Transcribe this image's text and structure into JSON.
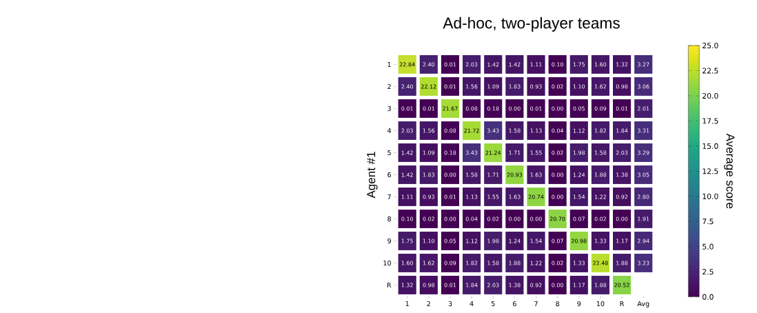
{
  "chart_data": {
    "type": "heatmap",
    "title": "Ad-hoc, two-player teams",
    "ylabel": "Agent #1",
    "clabel": "Average score",
    "categories": [
      "1",
      "2",
      "3",
      "4",
      "5",
      "6",
      "7",
      "8",
      "9",
      "10",
      "R",
      "Avg"
    ],
    "y_categories": [
      "1",
      "2",
      "3",
      "4",
      "5",
      "6",
      "7",
      "8",
      "9",
      "10",
      "R"
    ],
    "cells": [
      [
        22.84,
        2.4,
        0.01,
        2.03,
        1.42,
        1.42,
        1.11,
        0.1,
        1.75,
        1.6,
        1.32,
        3.27
      ],
      [
        2.4,
        22.12,
        0.01,
        1.56,
        1.09,
        1.83,
        0.93,
        0.02,
        1.1,
        1.62,
        0.98,
        3.06
      ],
      [
        0.01,
        0.01,
        21.67,
        0.08,
        0.18,
        0.0,
        0.01,
        0.0,
        0.05,
        0.09,
        0.01,
        2.01
      ],
      [
        2.03,
        1.56,
        0.08,
        21.72,
        3.43,
        1.58,
        1.13,
        0.04,
        1.12,
        1.82,
        1.84,
        3.31
      ],
      [
        1.42,
        1.09,
        0.18,
        3.43,
        21.24,
        1.71,
        1.55,
        0.02,
        1.98,
        1.58,
        2.03,
        3.29
      ],
      [
        1.42,
        1.83,
        0.0,
        1.58,
        1.71,
        20.93,
        1.63,
        0.0,
        1.24,
        1.88,
        1.38,
        3.05
      ],
      [
        1.11,
        0.93,
        0.01,
        1.13,
        1.55,
        1.63,
        20.74,
        0.0,
        1.54,
        1.22,
        0.92,
        2.8
      ],
      [
        0.1,
        0.02,
        0.0,
        0.04,
        0.02,
        0.0,
        0.0,
        20.7,
        0.07,
        0.02,
        0.0,
        1.91
      ],
      [
        1.75,
        1.1,
        0.05,
        1.12,
        1.98,
        1.24,
        1.54,
        0.07,
        20.98,
        1.33,
        1.17,
        2.94
      ],
      [
        1.6,
        1.62,
        0.09,
        1.82,
        1.58,
        1.88,
        1.22,
        0.02,
        1.33,
        22.48,
        1.88,
        3.23
      ],
      [
        1.32,
        0.98,
        0.01,
        1.84,
        2.03,
        1.38,
        0.92,
        0.0,
        1.17,
        1.88,
        20.52,
        null
      ]
    ],
    "cell_labels": [
      [
        "22.84",
        "2.40",
        "0.01",
        "2.03",
        "1.42",
        "1.42",
        "1.11",
        "0.10",
        "1.75",
        "1.60",
        "1.32",
        "3.27"
      ],
      [
        "2.40",
        "22.12",
        "0.01",
        "1.56",
        "1.09",
        "1.83",
        "0.93",
        "0.02",
        "1.10",
        "1.62",
        "0.98",
        "3.06"
      ],
      [
        "0.01",
        "0.01",
        "21.67",
        "0.08",
        "0.18",
        "0.00",
        "0.01",
        "0.00",
        "0.05",
        "0.09",
        "0.01",
        "2.01"
      ],
      [
        "2.03",
        "1.56",
        "0.08",
        "21.72",
        "3.43",
        "1.58",
        "1.13",
        "0.04",
        "1.12",
        "1.82",
        "1.84",
        "3.31"
      ],
      [
        "1.42",
        "1.09",
        "0.18",
        "3.43",
        "21.24",
        "1.71",
        "1.55",
        "0.02",
        "1.98",
        "1.58",
        "2.03",
        "3.29"
      ],
      [
        "1.42",
        "1.83",
        "0.00",
        "1.58",
        "1.71",
        "20.93",
        "1.63",
        "0.00",
        "1.24",
        "1.88",
        "1.38",
        "3.05"
      ],
      [
        "1.11",
        "0.93",
        "0.01",
        "1.13",
        "1.55",
        "1.63",
        "20.74",
        "0.00",
        "1.54",
        "1.22",
        "0.92",
        "2.80"
      ],
      [
        "0.10",
        "0.02",
        "0.00",
        "0.04",
        "0.02",
        "0.00",
        "0.00",
        "20.70",
        "0.07",
        "0.02",
        "0.00",
        "1.91"
      ],
      [
        "1.75",
        "1.10",
        "0.05",
        "1.12",
        "1.98",
        "1.24",
        "1.54",
        "0.07",
        "20.98",
        "1.33",
        "1.17",
        "2.94"
      ],
      [
        "1.60",
        "1.62",
        "0.09",
        "1.82",
        "1.58",
        "1.88",
        "1.22",
        "0.02",
        "1.33",
        "22.48",
        "1.88",
        "3.23"
      ],
      [
        "1.32",
        "0.98",
        "0.01",
        "1.84",
        "2.03",
        "1.38",
        "0.92",
        "0.00",
        "1.17",
        "1.88",
        "20.52",
        null
      ]
    ],
    "clim": [
      0,
      25
    ],
    "cticks": [
      {
        "value": 0,
        "label": "0.0"
      },
      {
        "value": 2.5,
        "label": "2.5"
      },
      {
        "value": 5,
        "label": "5.0"
      },
      {
        "value": 7.5,
        "label": "7.5"
      },
      {
        "value": 10,
        "label": "10.0"
      },
      {
        "value": 12.5,
        "label": "12.5"
      },
      {
        "value": 15,
        "label": "15.0"
      },
      {
        "value": 17.5,
        "label": "17.5"
      },
      {
        "value": 20,
        "label": "20.0"
      },
      {
        "value": 22.5,
        "label": "22.5"
      },
      {
        "value": 25,
        "label": "25.0"
      }
    ]
  }
}
